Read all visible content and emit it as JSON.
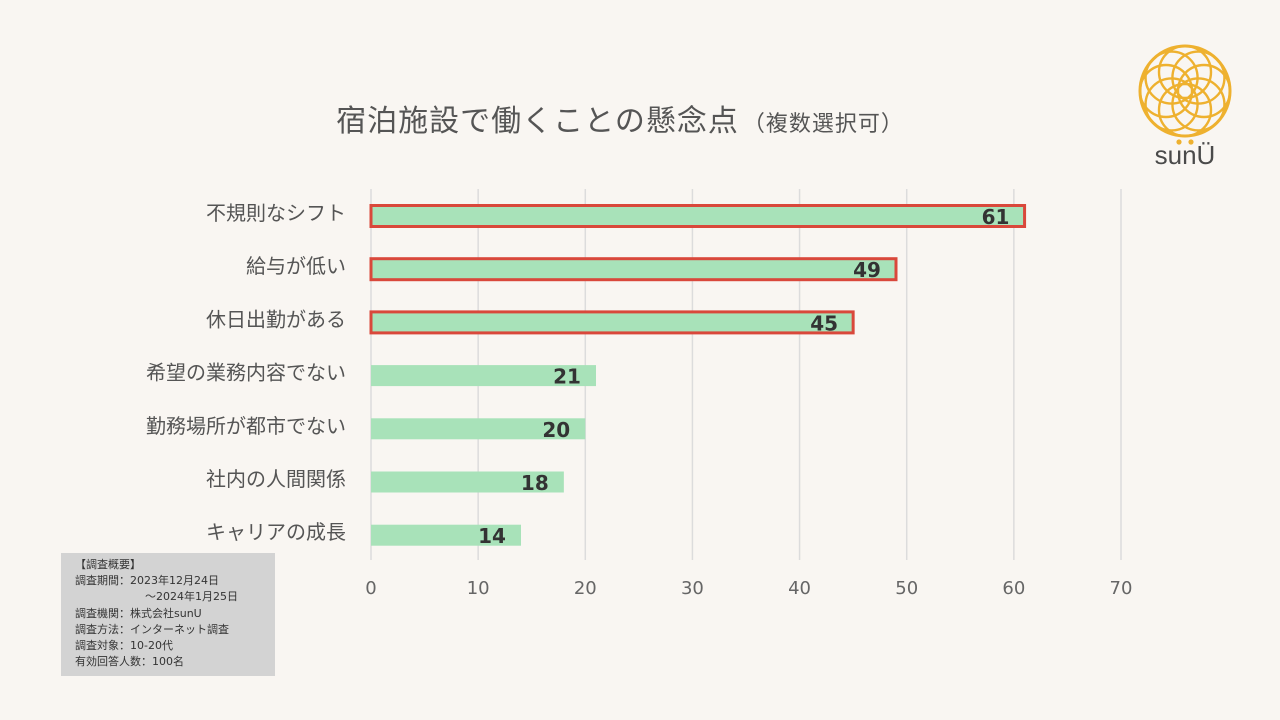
{
  "title": {
    "main": "宿泊施設で働くことの懸念点",
    "sub": "（複数選択可）"
  },
  "chart_data": {
    "type": "bar",
    "orientation": "horizontal",
    "categories": [
      "不規則なシフト",
      "給与が低い",
      "休日出勤がある",
      "希望の業務内容でない",
      "勤務場所が都市でない",
      "社内の人間関係",
      "キャリアの成長"
    ],
    "values": [
      61,
      49,
      45,
      21,
      20,
      18,
      14
    ],
    "highlighted": [
      true,
      true,
      true,
      false,
      false,
      false,
      false
    ],
    "xlim": [
      0,
      70
    ],
    "xticks": [
      "0",
      "10",
      "20",
      "30",
      "40",
      "50",
      "60",
      "70"
    ],
    "grid": true,
    "colors": {
      "bar": "#a8e2b9",
      "highlight_border": "#d9483b",
      "grid": "#dcdcdc"
    }
  },
  "logo": {
    "text": "sunÜ",
    "color": "#eeb12f"
  },
  "summary": {
    "heading": "【調査概要】",
    "period_line1": "調査期間：2023年12月24日",
    "period_line2": "～2024年1月25日",
    "org": "調査機関：株式会社sunU",
    "method": "調査方法：インターネット調査",
    "target": "調査対象：10-20代",
    "respondents": "有効回答人数：100名"
  }
}
